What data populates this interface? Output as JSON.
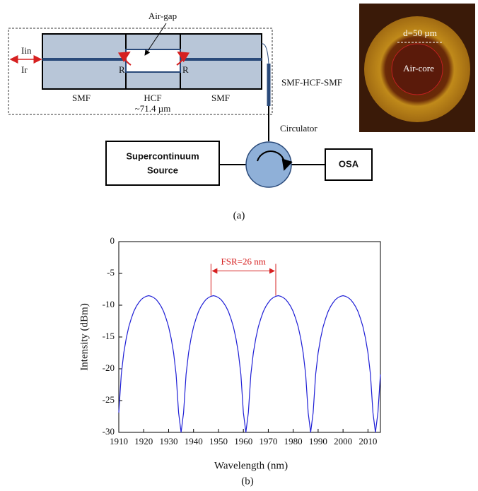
{
  "diagram": {
    "air_gap": "Air-gap",
    "iin": "Iin",
    "ir": "Ir",
    "r_left": "R",
    "r_right": "R",
    "smf_left": "SMF",
    "hcf": "HCF",
    "smf_right": "SMF",
    "hcf_length": "~71.4 µm",
    "sensor_label": "SMF-HCF-SMF",
    "core_diameter": "d=50 µm",
    "air_core": "Air-core",
    "circulator": "Circulator",
    "source_line1": "Supercontinuum",
    "source_line2": "Source",
    "osa": "OSA",
    "caption": "(a)"
  },
  "chart_data": {
    "type": "line",
    "caption": "(b)",
    "xlabel": "Wavelength (nm)",
    "ylabel": "Intensity (dBm)",
    "color": "#1f1fd6",
    "x": [
      1910,
      1911,
      1912,
      1913,
      1914,
      1915,
      1916,
      1917,
      1918,
      1919,
      1920,
      1921,
      1922,
      1923,
      1924,
      1925,
      1926,
      1927,
      1928,
      1929,
      1930,
      1931,
      1932,
      1933,
      1934,
      1935,
      1936,
      1937,
      1938,
      1939,
      1940,
      1941,
      1942,
      1943,
      1944,
      1945,
      1946,
      1947,
      1948,
      1949,
      1950,
      1951,
      1952,
      1953,
      1954,
      1955,
      1956,
      1957,
      1958,
      1959,
      1960,
      1961,
      1962,
      1963,
      1964,
      1965,
      1966,
      1967,
      1968,
      1969,
      1970,
      1971,
      1972,
      1973,
      1974,
      1975,
      1976,
      1977,
      1978,
      1979,
      1980,
      1981,
      1982,
      1983,
      1984,
      1985,
      1986,
      1987,
      1988,
      1989,
      1990,
      1991,
      1992,
      1993,
      1994,
      1995,
      1996,
      1997,
      1998,
      1999,
      2000,
      2001,
      2002,
      2003,
      2004,
      2005,
      2006,
      2007,
      2008,
      2009,
      2010,
      2011,
      2012,
      2013,
      2014,
      2015
    ],
    "values": [
      -26.9,
      -20.9,
      -17.5,
      -15.2,
      -13.4,
      -12.1,
      -11.0,
      -10.2,
      -9.6,
      -9.1,
      -8.8,
      -8.6,
      -8.5,
      -8.6,
      -8.8,
      -9.1,
      -9.6,
      -10.2,
      -11.0,
      -12.1,
      -13.4,
      -15.2,
      -17.5,
      -20.9,
      -26.9,
      -30,
      -26.9,
      -20.9,
      -17.5,
      -15.2,
      -13.4,
      -12.1,
      -11.0,
      -10.2,
      -9.6,
      -9.1,
      -8.8,
      -8.6,
      -8.5,
      -8.6,
      -8.8,
      -9.1,
      -9.6,
      -10.2,
      -11.0,
      -12.1,
      -13.4,
      -15.2,
      -17.5,
      -20.9,
      -26.9,
      -30,
      -26.9,
      -20.9,
      -17.5,
      -15.2,
      -13.4,
      -12.1,
      -11.0,
      -10.2,
      -9.6,
      -9.1,
      -8.8,
      -8.6,
      -8.5,
      -8.6,
      -8.8,
      -9.1,
      -9.6,
      -10.2,
      -11.0,
      -12.1,
      -13.4,
      -15.2,
      -17.5,
      -20.9,
      -26.9,
      -30,
      -26.9,
      -20.9,
      -17.5,
      -15.2,
      -13.4,
      -12.1,
      -11.0,
      -10.2,
      -9.6,
      -9.1,
      -8.8,
      -8.6,
      -8.5,
      -8.6,
      -8.8,
      -9.1,
      -9.6,
      -10.2,
      -11.0,
      -12.1,
      -13.4,
      -15.2,
      -17.5,
      -20.9,
      -26.9,
      -30,
      -26.9,
      -20.9
    ],
    "xlim": [
      1910,
      2015
    ],
    "ylim": [
      -30,
      0
    ],
    "xticks": [
      1910,
      1920,
      1930,
      1940,
      1950,
      1960,
      1970,
      1980,
      1990,
      2000,
      2010
    ],
    "yticks": [
      -30,
      -25,
      -20,
      -15,
      -10,
      -5,
      0
    ],
    "annotation": {
      "text": "FSR=26 nm",
      "x": [
        1947,
        1973
      ],
      "y": -3.5,
      "color": "#d62020"
    }
  }
}
